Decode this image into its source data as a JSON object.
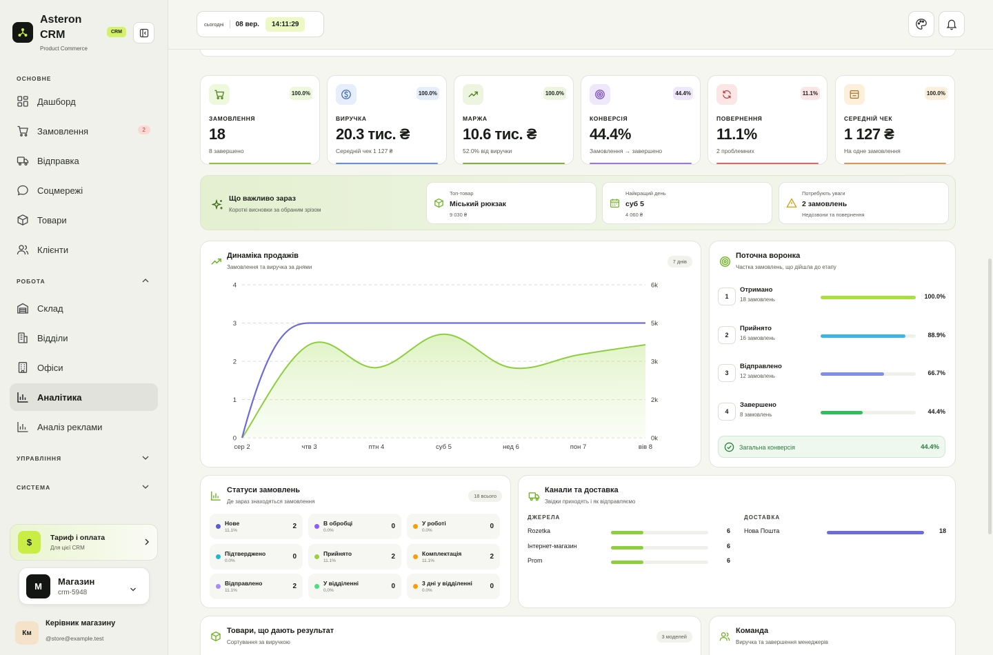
{
  "app": {
    "name": "Asteron CRM",
    "subtitle": "Product Commerce",
    "badge": "CRM"
  },
  "sidebar": {
    "section_main": "ОСНОВНЕ",
    "section_work": "РОБОТА",
    "section_manage": "УПРАВЛІННЯ",
    "section_system": "СИСТЕМА",
    "items": [
      {
        "label": "Дашборд",
        "icon": "dashboard-icon"
      },
      {
        "label": "Замовлення",
        "icon": "cart-icon",
        "badge": "2"
      },
      {
        "label": "Відправка",
        "icon": "truck-icon"
      },
      {
        "label": "Соцмережі",
        "icon": "chat-icon"
      },
      {
        "label": "Товари",
        "icon": "box-icon"
      },
      {
        "label": "Клієнти",
        "icon": "users-icon"
      },
      {
        "label": "Склад",
        "icon": "warehouse-icon"
      },
      {
        "label": "Відділи",
        "icon": "building-icon"
      },
      {
        "label": "Офіси",
        "icon": "office-icon"
      },
      {
        "label": "Аналітика",
        "icon": "analytics-icon",
        "active": true
      },
      {
        "label": "Аналіз реклами",
        "icon": "ads-analytics-icon"
      }
    ],
    "plan": {
      "title": "Тариф і оплата",
      "subtitle": "Для цієї CRM",
      "icon_text": "$"
    },
    "store": {
      "avatar": "М",
      "name": "Магазин",
      "id": "crm-5948"
    },
    "user": {
      "initials": "Км",
      "name": "Керівник магазину",
      "email": "@store@example.test"
    }
  },
  "topbar": {
    "date_label": "сьогодні",
    "date": "08 вер.",
    "time": "14:11:29"
  },
  "stats": [
    {
      "label": "ЗАМОВЛЕННЯ",
      "value": "18",
      "sub": "8 завершено",
      "pct": "100.0%",
      "color": "#8cc43c",
      "bg": "#eef8dc"
    },
    {
      "label": "ВИРУЧКА",
      "value": "20.3 тис. ₴",
      "sub": "Середній чек 1 127 ₴",
      "pct": "100.0%",
      "color": "#6b8fd6",
      "bg": "#e6eefb"
    },
    {
      "label": "МАРЖА",
      "value": "10.6 тис. ₴",
      "sub": "52.0% від виручки",
      "pct": "100.0%",
      "color": "#7fae4a",
      "bg": "#edf5e0"
    },
    {
      "label": "КОНВЕРСІЯ",
      "value": "44.4%",
      "sub": "Замовлення → завершено",
      "pct": "44.4%",
      "color": "#9a7ad8",
      "bg": "#efe8fb"
    },
    {
      "label": "ПОВЕРНЕННЯ",
      "value": "11.1%",
      "sub": "2 проблемних",
      "pct": "11.1%",
      "color": "#d66a6a",
      "bg": "#fbe5e5"
    },
    {
      "label": "СЕРЕДНІЙ ЧЕК",
      "value": "1 127 ₴",
      "sub": "На одне замовлення",
      "pct": "100.0%",
      "color": "#d49a5a",
      "bg": "#fcf0dc"
    }
  ],
  "insights": {
    "title": "Що важливо зараз",
    "subtitle": "Короткі висновки за обраним зрізом",
    "cards": [
      {
        "label": "Топ-товар",
        "value": "Міський рюкзак",
        "sub": "9 030 ₴"
      },
      {
        "label": "Найкращий день",
        "value": "суб 5",
        "sub": "4 060 ₴"
      },
      {
        "label": "Потребують уваги",
        "value": "2 замовлень",
        "sub": "Недозвони та повернення"
      }
    ]
  },
  "sales": {
    "title": "Динаміка продажів",
    "subtitle": "Замовлення та виручка за днями",
    "chip": "7 днів"
  },
  "chart_data": {
    "type": "line",
    "categories": [
      "сер 2",
      "чтв 3",
      "птн 4",
      "суб 5",
      "нед 6",
      "пон 7",
      "вів 8"
    ],
    "y_left_ticks": [
      "0",
      "1",
      "2",
      "3",
      "4"
    ],
    "y_right_ticks": [
      "0k",
      "2k",
      "3k",
      "5k",
      "6k"
    ],
    "ylim_left": [
      0,
      4
    ],
    "ylim_right": [
      0,
      6000
    ],
    "grid": true,
    "series": [
      {
        "values": [
          0,
          3,
          3,
          3,
          3,
          3,
          3
        ],
        "color": "#6b6bdc",
        "axis": "left"
      },
      {
        "values": [
          0,
          3650,
          2750,
          4060,
          2750,
          3250,
          3650
        ],
        "color": "#8cce3c",
        "axis": "right",
        "fill": true
      }
    ]
  },
  "funnel": {
    "title": "Поточна воронка",
    "subtitle": "Частка замовлень, що дійшла до етапу",
    "stages": [
      {
        "num": "1",
        "name": "Отримано",
        "sub": "18 замовлень",
        "pct": "100.0%",
        "frac": 1.0,
        "color": "#a8e03c"
      },
      {
        "num": "2",
        "name": "Прийнято",
        "sub": "16 замовлень",
        "pct": "88.9%",
        "frac": 0.889,
        "color": "#3cb4e6"
      },
      {
        "num": "3",
        "name": "Відправлено",
        "sub": "12 замовлень",
        "pct": "66.7%",
        "frac": 0.667,
        "color": "#7f8ee6"
      },
      {
        "num": "4",
        "name": "Завершено",
        "sub": "8 замовлень",
        "pct": "44.4%",
        "frac": 0.444,
        "color": "#2fbf5a"
      }
    ],
    "total_label": "Загальна конверсія",
    "total_value": "44.4%"
  },
  "statuses": {
    "title": "Статуси замовлень",
    "subtitle": "Де зараз знаходяться замовлення",
    "chip": "18 всього",
    "items": [
      {
        "name": "Нове",
        "pct": "11.1%",
        "count": "2",
        "color": "#5b5bd6"
      },
      {
        "name": "В обробці",
        "pct": "0.0%",
        "count": "0",
        "color": "#8b5cf6"
      },
      {
        "name": "У роботі",
        "pct": "0.0%",
        "count": "0",
        "color": "#f59e0b"
      },
      {
        "name": "Підтверджено",
        "pct": "0.0%",
        "count": "0",
        "color": "#22b8cf"
      },
      {
        "name": "Прийнято",
        "pct": "11.1%",
        "count": "2",
        "color": "#9ad13c"
      },
      {
        "name": "Комплектація",
        "pct": "11.1%",
        "count": "2",
        "color": "#f59e0b"
      },
      {
        "name": "Відправлено",
        "pct": "11.1%",
        "count": "2",
        "color": "#a78bfa"
      },
      {
        "name": "У відділенні",
        "pct": "0.0%",
        "count": "0",
        "color": "#4ade80"
      },
      {
        "name": "3 дні у відділенні",
        "pct": "0.0%",
        "count": "0",
        "color": "#f59e0b"
      }
    ]
  },
  "channels": {
    "title": "Канали та доставка",
    "subtitle": "Звідки приходять і як відправляємо",
    "sources_label": "ДЖЕРЕЛА",
    "delivery_label": "ДОСТАВКА",
    "sources": [
      {
        "name": "Rozetka",
        "count": "6",
        "frac": 0.33
      },
      {
        "name": "Інтернет-магазин",
        "count": "6",
        "frac": 0.33
      },
      {
        "name": "Prom",
        "count": "6",
        "frac": 0.33
      }
    ],
    "delivery": [
      {
        "name": "Нова Пошта",
        "count": "18",
        "frac": 1.0
      }
    ]
  },
  "products": {
    "title": "Товари, що дають результат",
    "subtitle": "Сортування за виручкою",
    "chip": "3 моделей"
  },
  "team": {
    "title": "Команда",
    "subtitle": "Виручка та завершення менеджерів"
  }
}
